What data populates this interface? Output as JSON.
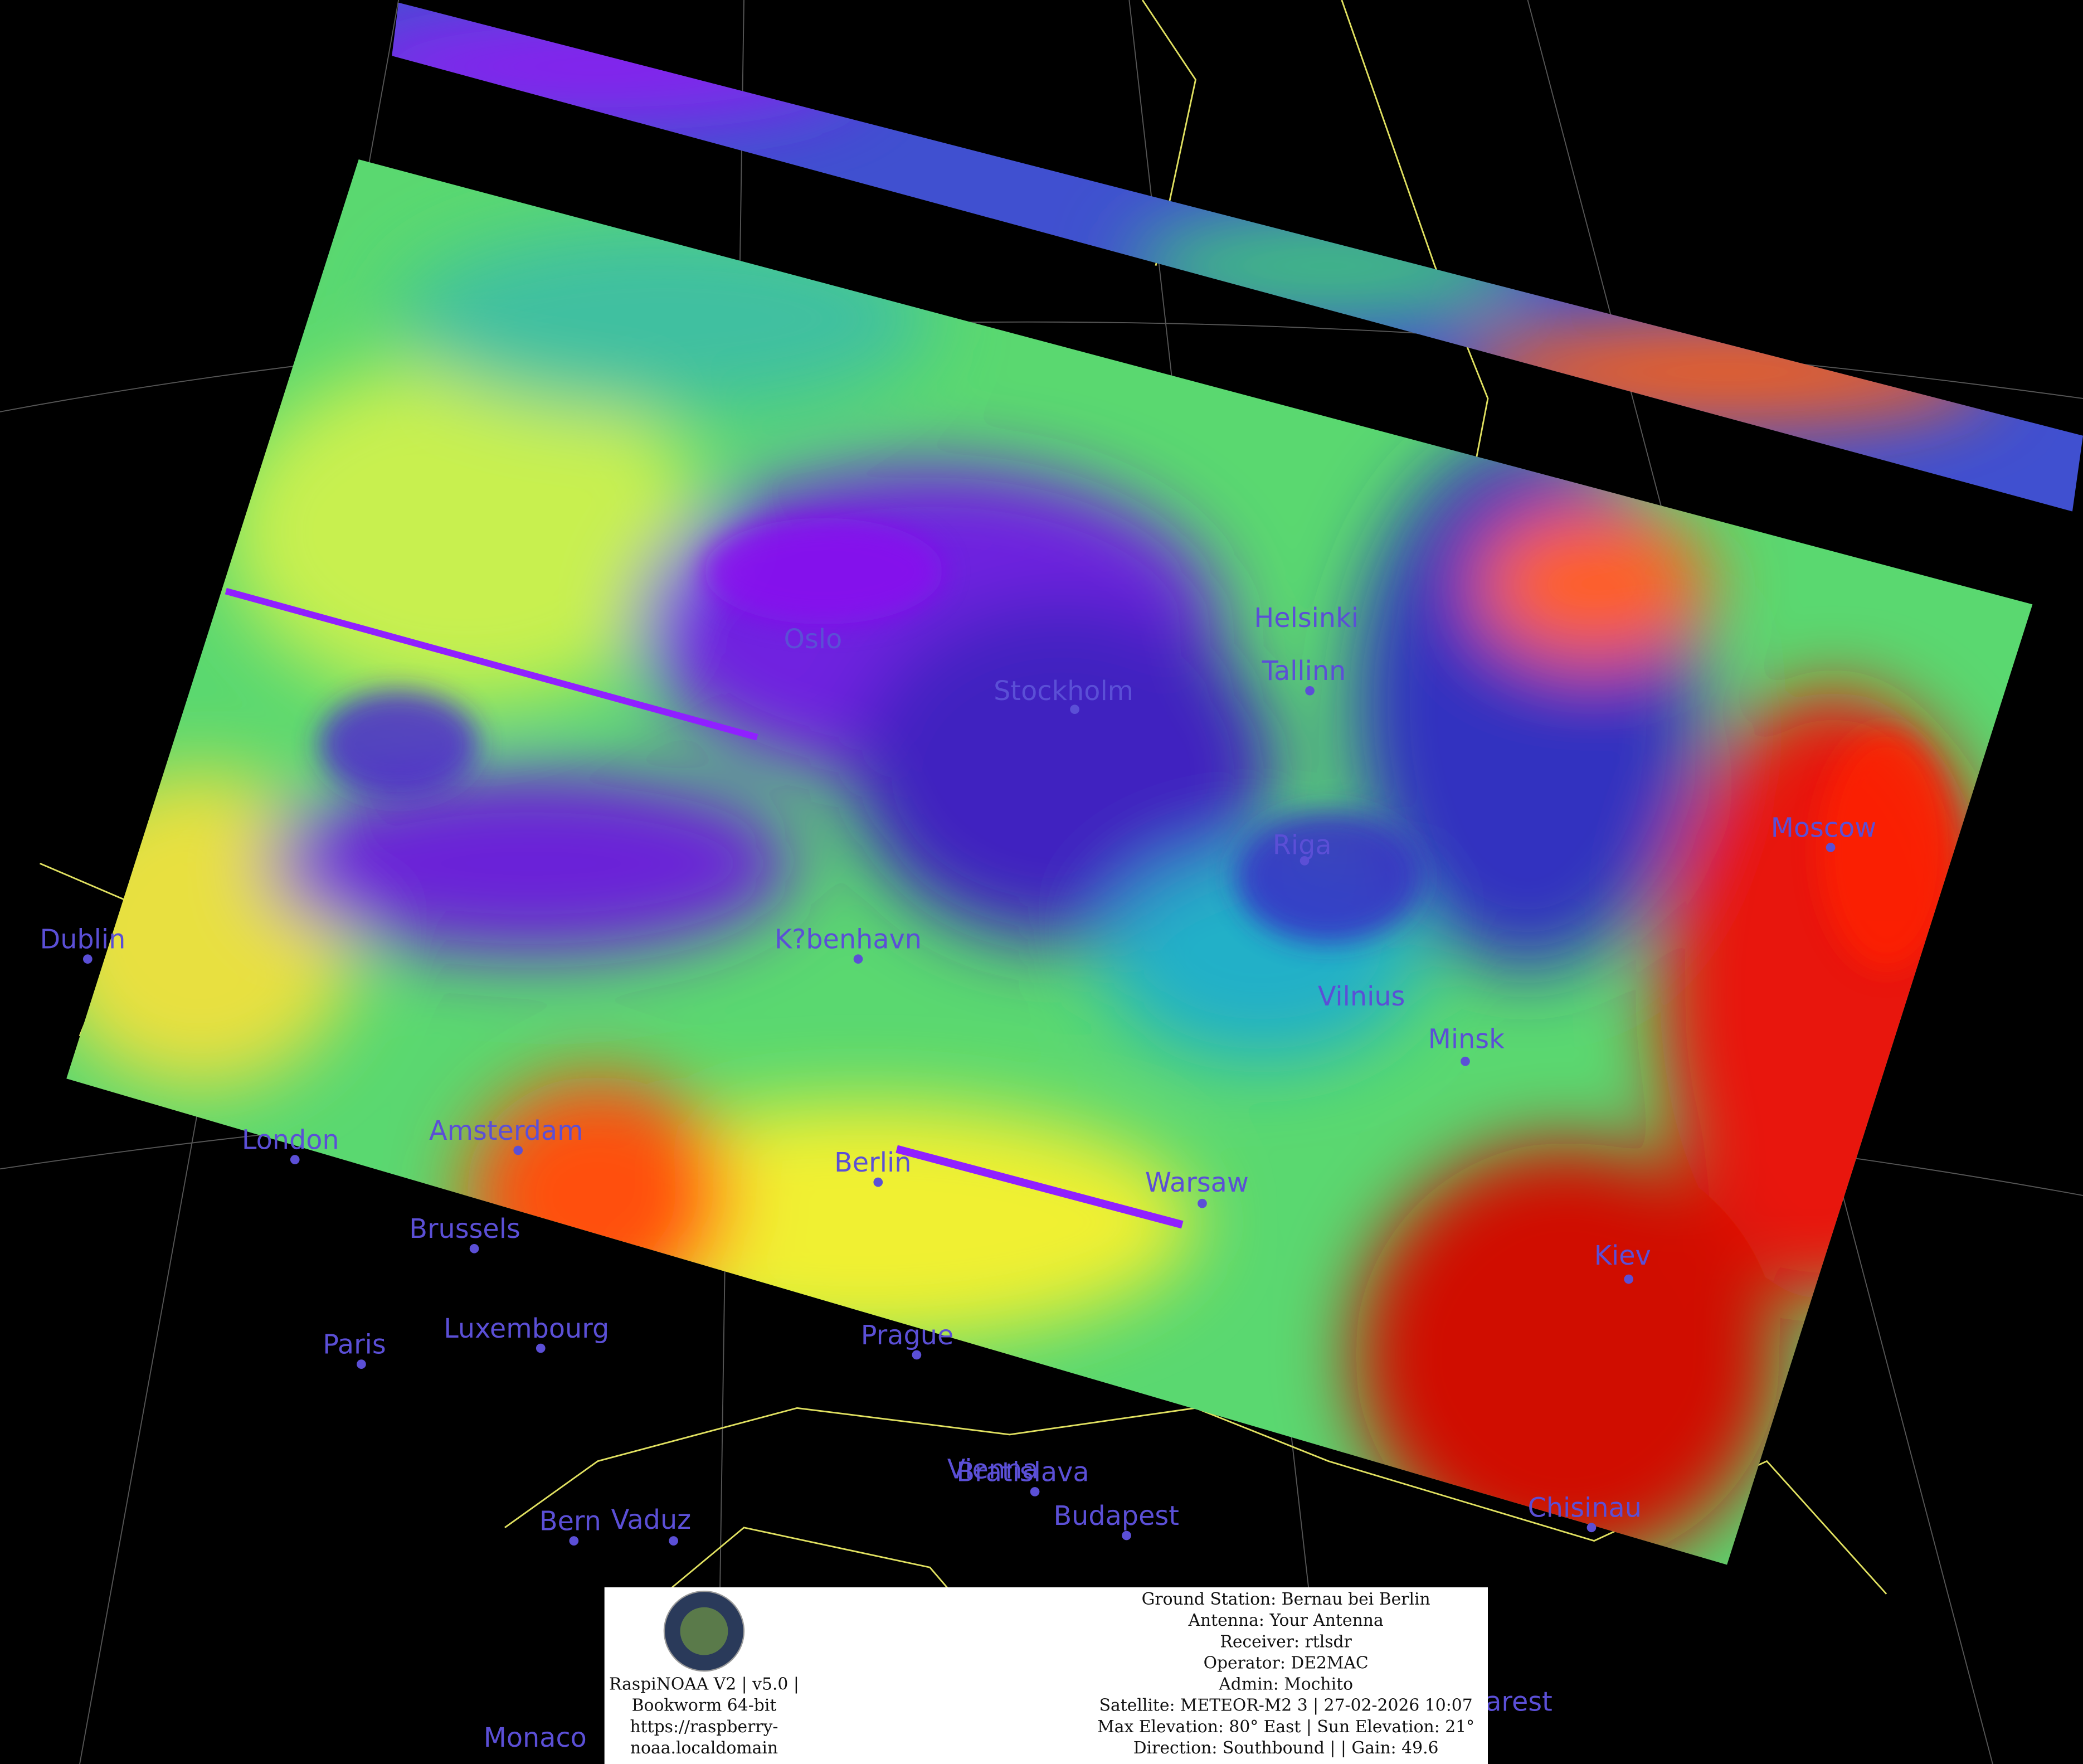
{
  "cities": [
    "Oslo",
    "Stockholm",
    "Helsinki",
    "Tallinn",
    "Riga",
    "Moscow",
    "Dublin",
    "K?benhavn",
    "Vilnius",
    "Minsk",
    "London",
    "Amsterdam",
    "Berlin",
    "Warsaw",
    "Brussels",
    "Paris",
    "Luxembourg",
    "Prague",
    "Kiev",
    "Vienna",
    "Bratislava",
    "Budapest",
    "Chisinau",
    "Bern",
    "Vaduz",
    "Monaco",
    "arest"
  ],
  "info": {
    "left": [
      "RaspiNOAA V2 | v5.0 |",
      "Bookworm 64-bit",
      "https://raspberry-",
      "noaa.localdomain"
    ],
    "right": [
      "Ground Station: Bernau bei Berlin",
      "Antenna: Your Antenna",
      "Receiver: rtlsdr",
      "Operator: DE2MAC",
      "Admin: Mochito",
      "Satellite: METEOR-M2 3 | 27-02-2026 10:07",
      "Max Elevation: 80° East | Sun Elevation: 21°",
      "Direction: Southbound | | Gain: 49.6"
    ]
  }
}
